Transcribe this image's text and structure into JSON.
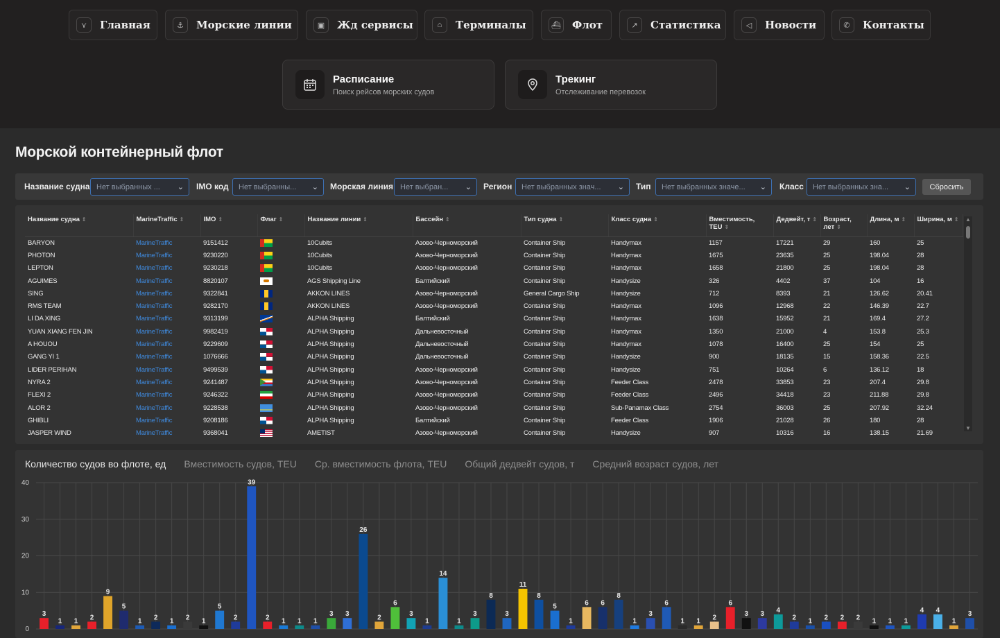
{
  "nav": [
    {
      "label": "Главная",
      "icon": "logo-icon",
      "glyph": "⋎"
    },
    {
      "label": "Морские линии",
      "icon": "anchor-icon",
      "glyph": "⚓"
    },
    {
      "label": "Жд сервисы",
      "icon": "train-icon",
      "glyph": "▣"
    },
    {
      "label": "Терминалы",
      "icon": "warehouse-icon",
      "glyph": "⌂"
    },
    {
      "label": "Флот",
      "icon": "ship-icon",
      "glyph": "⛴"
    },
    {
      "label": "Статистика",
      "icon": "chart-line-icon",
      "glyph": "↗"
    },
    {
      "label": "Новости",
      "icon": "megaphone-icon",
      "glyph": "◁"
    },
    {
      "label": "Контакты",
      "icon": "phone-icon",
      "glyph": "✆"
    }
  ],
  "features": [
    {
      "title": "Расписание",
      "subtitle": "Поиск рейсов морских судов",
      "icon": "calendar-icon"
    },
    {
      "title": "Трекинг",
      "subtitle": "Отслеживание перевозок",
      "icon": "location-pin-icon"
    }
  ],
  "page_title": "Морской контейнерный флот",
  "filters": [
    {
      "label": "Название судна",
      "placeholder": "Нет выбранных ..."
    },
    {
      "label": "IMO код",
      "placeholder": "Нет выбранны..."
    },
    {
      "label": "Морская линия",
      "placeholder": "Нет выбран..."
    },
    {
      "label": "Регион",
      "placeholder": "Нет выбранных знач..."
    },
    {
      "label": "Тип",
      "placeholder": "Нет выбранных значе..."
    },
    {
      "label": "Класс",
      "placeholder": "Нет выбранных зна..."
    }
  ],
  "reset_label": "Сбросить",
  "table": {
    "columns": [
      "Название судна",
      "MarineTraffic",
      "IMO",
      "Флаг",
      "Название линии",
      "Бассейн",
      "Тип судна",
      "Класс судна",
      "Вместимость, TEU",
      "Дедвейт, т",
      "Возраст, лет",
      "Длина, м",
      "Ширина, м"
    ],
    "rows": [
      [
        "BARYON",
        "MarineTraffic",
        "9151412",
        "gw",
        "10Cubits",
        "Азово-Черноморский",
        "Container Ship",
        "Handymax",
        "1157",
        "17221",
        "29",
        "160",
        "25"
      ],
      [
        "PHOTON",
        "MarineTraffic",
        "9230220",
        "gw",
        "10Cubits",
        "Азово-Черноморский",
        "Container Ship",
        "Handymax",
        "1675",
        "23635",
        "25",
        "198.04",
        "28"
      ],
      [
        "LEPTON",
        "MarineTraffic",
        "9230218",
        "gw",
        "10Cubits",
        "Азово-Черноморский",
        "Container Ship",
        "Handymax",
        "1658",
        "21800",
        "25",
        "198.04",
        "28"
      ],
      [
        "AGUIMES",
        "MarineTraffic",
        "8820107",
        "cy",
        "AGS Shipping Line",
        "Балтийский",
        "Container Ship",
        "Handysize",
        "326",
        "4402",
        "37",
        "104",
        "16"
      ],
      [
        "SING",
        "MarineTraffic",
        "9322841",
        "bb",
        "AKKON LINES",
        "Азово-Черноморский",
        "General Cargo Ship",
        "Handysize",
        "712",
        "8393",
        "21",
        "126.62",
        "20.41"
      ],
      [
        "RMS TEAM",
        "MarineTraffic",
        "9282170",
        "bb",
        "AKKON LINES",
        "Азово-Черноморский",
        "Container Ship",
        "Handymax",
        "1096",
        "12968",
        "22",
        "146.39",
        "22.7"
      ],
      [
        "LI DA XING",
        "MarineTraffic",
        "9313199",
        "mh",
        "ALPHA Shipping",
        "Балтийский",
        "Container Ship",
        "Handymax",
        "1638",
        "15952",
        "21",
        "169.4",
        "27.2"
      ],
      [
        "YUAN XIANG FEN JIN",
        "MarineTraffic",
        "9982419",
        "pa",
        "ALPHA Shipping",
        "Дальневосточный",
        "Container Ship",
        "Handymax",
        "1350",
        "21000",
        "4",
        "153.8",
        "25.3"
      ],
      [
        "A HOUOU",
        "MarineTraffic",
        "9229609",
        "pa",
        "ALPHA Shipping",
        "Дальневосточный",
        "Container Ship",
        "Handymax",
        "1078",
        "16400",
        "25",
        "154",
        "25"
      ],
      [
        "GANG YI 1",
        "MarineTraffic",
        "1076666",
        "pa",
        "ALPHA Shipping",
        "Дальневосточный",
        "Container Ship",
        "Handysize",
        "900",
        "18135",
        "15",
        "158.36",
        "22.5"
      ],
      [
        "LIDER PERIHAN",
        "MarineTraffic",
        "9499539",
        "pa",
        "ALPHA Shipping",
        "Азово-Черноморский",
        "Container Ship",
        "Handysize",
        "751",
        "10264",
        "6",
        "136.12",
        "18"
      ],
      [
        "NYRA 2",
        "MarineTraffic",
        "9241487",
        "km",
        "ALPHA Shipping",
        "Азово-Черноморский",
        "Container Ship",
        "Feeder Class",
        "2478",
        "33853",
        "23",
        "207.4",
        "29.8"
      ],
      [
        "FLEXI 2",
        "MarineTraffic",
        "9246322",
        "ir",
        "ALPHA Shipping",
        "Азово-Черноморский",
        "Container Ship",
        "Feeder Class",
        "2496",
        "34418",
        "23",
        "211.88",
        "29.8"
      ],
      [
        "ALOR 2",
        "MarineTraffic",
        "9228538",
        "aw",
        "ALPHA Shipping",
        "Азово-Черноморский",
        "Container Ship",
        "Sub-Panamax Class",
        "2754",
        "36003",
        "25",
        "207.92",
        "32.24"
      ],
      [
        "GHIBLI",
        "MarineTraffic",
        "9208186",
        "pa",
        "ALPHA Shipping",
        "Балтийский",
        "Container Ship",
        "Feeder Class",
        "1906",
        "21028",
        "26",
        "180",
        "28"
      ],
      [
        "JASPER WIND",
        "MarineTraffic",
        "9368041",
        "lr",
        "AMETIST",
        "Азово-Черноморский",
        "Container Ship",
        "Handysize",
        "907",
        "10316",
        "16",
        "138.15",
        "21.69"
      ]
    ]
  },
  "chart_tabs": [
    "Количество судов во флоте, ед",
    "Вместимость судов, TEU",
    "Ср. вместимость флота, TEU",
    "Общий дедвейт судов, т",
    "Средний возраст судов, лет"
  ],
  "chart_data": {
    "type": "bar",
    "ylim": [
      0,
      40
    ],
    "yticks": [
      0,
      10,
      20,
      30,
      40
    ],
    "grid": true,
    "values": [
      3,
      1,
      1,
      2,
      9,
      5,
      1,
      2,
      1,
      2,
      1,
      5,
      2,
      39,
      2,
      1,
      1,
      1,
      3,
      3,
      26,
      2,
      6,
      3,
      1,
      14,
      1,
      3,
      8,
      3,
      11,
      8,
      5,
      1,
      6,
      6,
      8,
      1,
      3,
      6,
      1,
      1,
      2,
      6,
      3,
      3,
      4,
      2,
      1,
      2,
      2,
      2,
      1,
      1,
      1,
      4,
      4,
      1,
      3
    ],
    "colors": [
      "#e8202a",
      "#17267a",
      "#e0a53a",
      "#e8202a",
      "#e0a52a",
      "#1f2b6e",
      "#1d5bb5",
      "#0e2a5a",
      "#1a6fd0",
      "#3a3a3a",
      "#111111",
      "#1f78d1",
      "#1f3b9a",
      "#1f55c0",
      "#e8202a",
      "#1a7ad6",
      "#0d8a8a",
      "#1f4fa8",
      "#3aa83a",
      "#2f6fd6",
      "#0b4a8f",
      "#e0a53a",
      "#4fbf3a",
      "#12a3b5",
      "#1e3c8f",
      "#2a8fd6",
      "#0d8a8a",
      "#0d9a8a",
      "#0c2a55",
      "#1f66c0",
      "#f5c400",
      "#0e4fa0",
      "#1a6fd0",
      "#1f3b9a",
      "#e8b860",
      "#17306b",
      "#16407e",
      "#1f7ae0",
      "#2a4fb0",
      "#1f5ab5",
      "#2a2a2a",
      "#e0a53a",
      "#e8c08a",
      "#e8202a",
      "#111111",
      "#2d3aa0",
      "#0d9a9a",
      "#1f3b9a",
      "#1a50a8",
      "#1a4fc0",
      "#e8202a",
      "#3a3a3a",
      "#111111",
      "#1f55c0",
      "#0d9a9a",
      "#1f3bb0",
      "#4ab0e8",
      "#e0a53a",
      "#1f4fa8"
    ]
  }
}
